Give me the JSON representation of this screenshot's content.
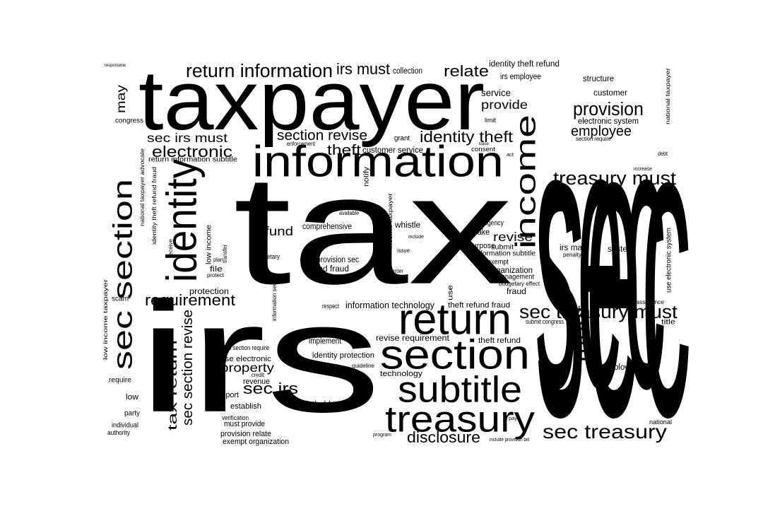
{
  "cloud": {
    "words": [
      {
        "id": "tax",
        "text": "tax"
      },
      {
        "id": "irs",
        "text": "irs"
      },
      {
        "id": "taxpayer",
        "text": "taxpayer"
      },
      {
        "id": "sec",
        "text": "sec"
      },
      {
        "id": "sec_vert",
        "text": "sec"
      },
      {
        "id": "information",
        "text": "information"
      },
      {
        "id": "return",
        "text": "return"
      },
      {
        "id": "section",
        "text": "section"
      },
      {
        "id": "subtitle",
        "text": "subtitle"
      },
      {
        "id": "treasury",
        "text": "treasury"
      },
      {
        "id": "income",
        "text": "income"
      },
      {
        "id": "identity",
        "text": "identity"
      },
      {
        "id": "sec_section",
        "text": "sec section"
      },
      {
        "id": "return_information",
        "text": "return information"
      },
      {
        "id": "irs_must",
        "text": "irs must"
      },
      {
        "id": "relate",
        "text": "relate"
      },
      {
        "id": "provision",
        "text": "provision"
      },
      {
        "id": "employee",
        "text": "employee"
      },
      {
        "id": "identity_theft",
        "text": "identity theft"
      },
      {
        "id": "section_revise",
        "text": "section revise"
      },
      {
        "id": "sec_irs_must",
        "text": "sec irs must"
      },
      {
        "id": "electronic",
        "text": "electronic"
      },
      {
        "id": "theft",
        "text": "theft"
      },
      {
        "id": "treasury_must",
        "text": "treasury must"
      },
      {
        "id": "sec_treasury_must",
        "text": "sec treasury must"
      },
      {
        "id": "sec_treasury",
        "text": "sec treasury"
      },
      {
        "id": "disclosure",
        "text": "disclosure"
      },
      {
        "id": "requirement",
        "text": "requirement"
      },
      {
        "id": "property",
        "text": "property"
      },
      {
        "id": "sec_irs",
        "text": "sec irs"
      },
      {
        "id": "tax_return",
        "text": "tax return"
      },
      {
        "id": "sec_section_revise",
        "text": "sec section revise"
      },
      {
        "id": "must_vert",
        "text": "must"
      },
      {
        "id": "refund",
        "text": "refund"
      },
      {
        "id": "revise",
        "text": "revise"
      },
      {
        "id": "may",
        "text": "may"
      },
      {
        "id": "provide",
        "text": "provide"
      },
      {
        "id": "service",
        "text": "service"
      },
      {
        "id": "customer",
        "text": "customer"
      },
      {
        "id": "structure",
        "text": "structure"
      },
      {
        "id": "irs_employee",
        "text": "irs employee"
      },
      {
        "id": "identity_theft_refund",
        "text": "identity theft refund"
      },
      {
        "id": "collection",
        "text": "collection"
      },
      {
        "id": "customer_service",
        "text": "customer service"
      },
      {
        "id": "grant",
        "text": "grant"
      },
      {
        "id": "congress",
        "text": "congress"
      },
      {
        "id": "responsible",
        "text": "responsible"
      },
      {
        "id": "national_taxpayer",
        "text": "national taxpayer"
      },
      {
        "id": "electronic_system",
        "text": "electronic system"
      },
      {
        "id": "section_require",
        "text": "section require"
      },
      {
        "id": "irs_may",
        "text": "irs may"
      },
      {
        "id": "system",
        "text": "system"
      },
      {
        "id": "use_electronic_system",
        "text": "use electronic system"
      },
      {
        "id": "liability",
        "text": "liability"
      },
      {
        "id": "debt",
        "text": "debt"
      },
      {
        "id": "increase",
        "text": "increase"
      },
      {
        "id": "comprehensive",
        "text": "comprehensive"
      },
      {
        "id": "whistle",
        "text": "whistle"
      },
      {
        "id": "provision_sec",
        "text": "provision sec"
      },
      {
        "id": "refund_fraud",
        "text": "refund fraud"
      },
      {
        "id": "budgetary",
        "text": "budgetary"
      },
      {
        "id": "information_subtitle",
        "text": "information subtitle"
      },
      {
        "id": "organization",
        "text": "organization"
      },
      {
        "id": "management",
        "text": "management"
      },
      {
        "id": "budgetary_effect",
        "text": "budgetary effect"
      },
      {
        "id": "fraud",
        "text": "fraud"
      },
      {
        "id": "make",
        "text": "make"
      },
      {
        "id": "submit",
        "text": "submit"
      },
      {
        "id": "purpose",
        "text": "purpose"
      },
      {
        "id": "exempt",
        "text": "exempt"
      },
      {
        "id": "agency",
        "text": "agency"
      },
      {
        "id": "information_technology",
        "text": "information technology"
      },
      {
        "id": "theft_refund_fraud",
        "text": "theft refund fraud"
      },
      {
        "id": "theft_refund",
        "text": "theft refund"
      },
      {
        "id": "submit_congress",
        "text": "submit congress"
      },
      {
        "id": "assistance",
        "text": "assistance"
      },
      {
        "id": "title",
        "text": "title"
      },
      {
        "id": "revise_requirement",
        "text": "revise requirement"
      },
      {
        "id": "implement",
        "text": "implement"
      },
      {
        "id": "identity_protection",
        "text": "identity protection"
      },
      {
        "id": "technology",
        "text": "technology"
      },
      {
        "id": "guideline",
        "text": "guideline"
      },
      {
        "id": "use_electronic",
        "text": "use electronic"
      },
      {
        "id": "sec_section_require",
        "text": "sec section require"
      },
      {
        "id": "revenue",
        "text": "revenue"
      },
      {
        "id": "credit",
        "text": "credit"
      },
      {
        "id": "report",
        "text": "report"
      },
      {
        "id": "establish",
        "text": "establish"
      },
      {
        "id": "whistle_blower",
        "text": "whistle blower"
      },
      {
        "id": "verification",
        "text": "verification"
      },
      {
        "id": "must_provide",
        "text": "must provide"
      },
      {
        "id": "provision_relate",
        "text": "provision relate"
      },
      {
        "id": "exempt_organization",
        "text": "exempt organization"
      },
      {
        "id": "program",
        "text": "program"
      },
      {
        "id": "include_provision_bill",
        "text": "include provision bill"
      },
      {
        "id": "blower",
        "text": "blower"
      },
      {
        "id": "strategy",
        "text": "strategy"
      },
      {
        "id": "officer",
        "text": "officer"
      },
      {
        "id": "national",
        "text": "national"
      },
      {
        "id": "protection",
        "text": "protection"
      },
      {
        "id": "file",
        "text": "file"
      },
      {
        "id": "scam",
        "text": "scam"
      },
      {
        "id": "require",
        "text": "require"
      },
      {
        "id": "low",
        "text": "low"
      },
      {
        "id": "party",
        "text": "party"
      },
      {
        "id": "individual",
        "text": "individual"
      },
      {
        "id": "authority",
        "text": "authority"
      },
      {
        "id": "low_income_taxpayer",
        "text": "low income taxpayer"
      },
      {
        "id": "respect",
        "text": "respect"
      },
      {
        "id": "enforcement",
        "text": "enforcement"
      },
      {
        "id": "consent",
        "text": "consent"
      },
      {
        "id": "base",
        "text": "base"
      },
      {
        "id": "limit",
        "text": "limit"
      },
      {
        "id": "act",
        "text": "act"
      },
      {
        "id": "return_information_subtitle",
        "text": "return information subtitle"
      },
      {
        "id": "national_taxpayer_advocate",
        "text": "national taxpayer advocate"
      },
      {
        "id": "identity_theft_refund_fraud",
        "text": "identity theft refund fraud"
      },
      {
        "id": "low_income",
        "text": "low income"
      },
      {
        "id": "use",
        "text": "use"
      },
      {
        "id": "information_sec",
        "text": "information sec"
      },
      {
        "id": "income_taxpayer",
        "text": "income taxpayer"
      },
      {
        "id": "notify",
        "text": "notify"
      },
      {
        "id": "available",
        "text": "available"
      },
      {
        "id": "issue",
        "text": "issue"
      },
      {
        "id": "center",
        "text": "center"
      },
      {
        "id": "include",
        "text": "include"
      },
      {
        "id": "transfer",
        "text": "transfer"
      },
      {
        "id": "plan",
        "text": "plan"
      },
      {
        "id": "protect",
        "text": "protect"
      },
      {
        "id": "receive",
        "text": "receive"
      },
      {
        "id": "pay",
        "text": "pay"
      },
      {
        "id": "penalty",
        "text": "penalty"
      }
    ]
  }
}
